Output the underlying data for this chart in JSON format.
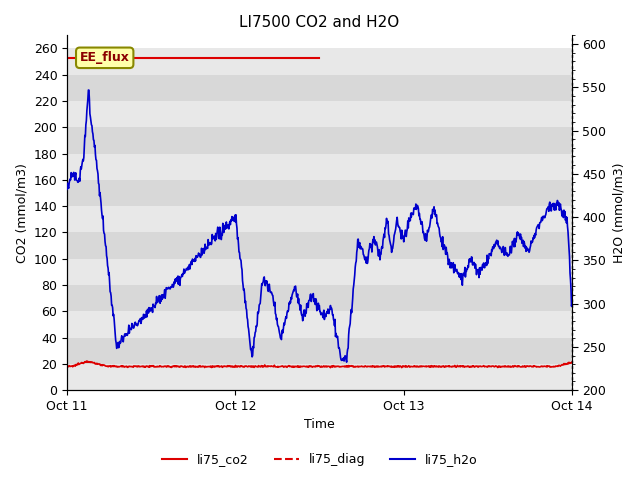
{
  "title": "LI7500 CO2 and H2O",
  "xlabel": "Time",
  "ylabel_left": "CO2 (mmol/m3)",
  "ylabel_right": "H2O (mmol/m3)",
  "ylim_left": [
    0,
    270
  ],
  "ylim_right": [
    200,
    610
  ],
  "yticks_left": [
    0,
    20,
    40,
    60,
    80,
    100,
    120,
    140,
    160,
    180,
    200,
    220,
    240,
    260
  ],
  "yticks_right": [
    200,
    250,
    300,
    350,
    400,
    450,
    500,
    550,
    600
  ],
  "band_colors": [
    "#e8e8e8",
    "#d8d8d8"
  ],
  "line_co2_color": "#dd0000",
  "line_diag_color": "#dd0000",
  "line_h2o_color": "#0000cc",
  "legend_labels": [
    "li75_co2",
    "li75_diag",
    "li75_h2o"
  ],
  "annotation_text": "EE_flux",
  "annotation_bg": "#ffffaa",
  "annotation_border": "#888800",
  "title_fontsize": 11,
  "axis_fontsize": 9,
  "tick_fontsize": 9
}
